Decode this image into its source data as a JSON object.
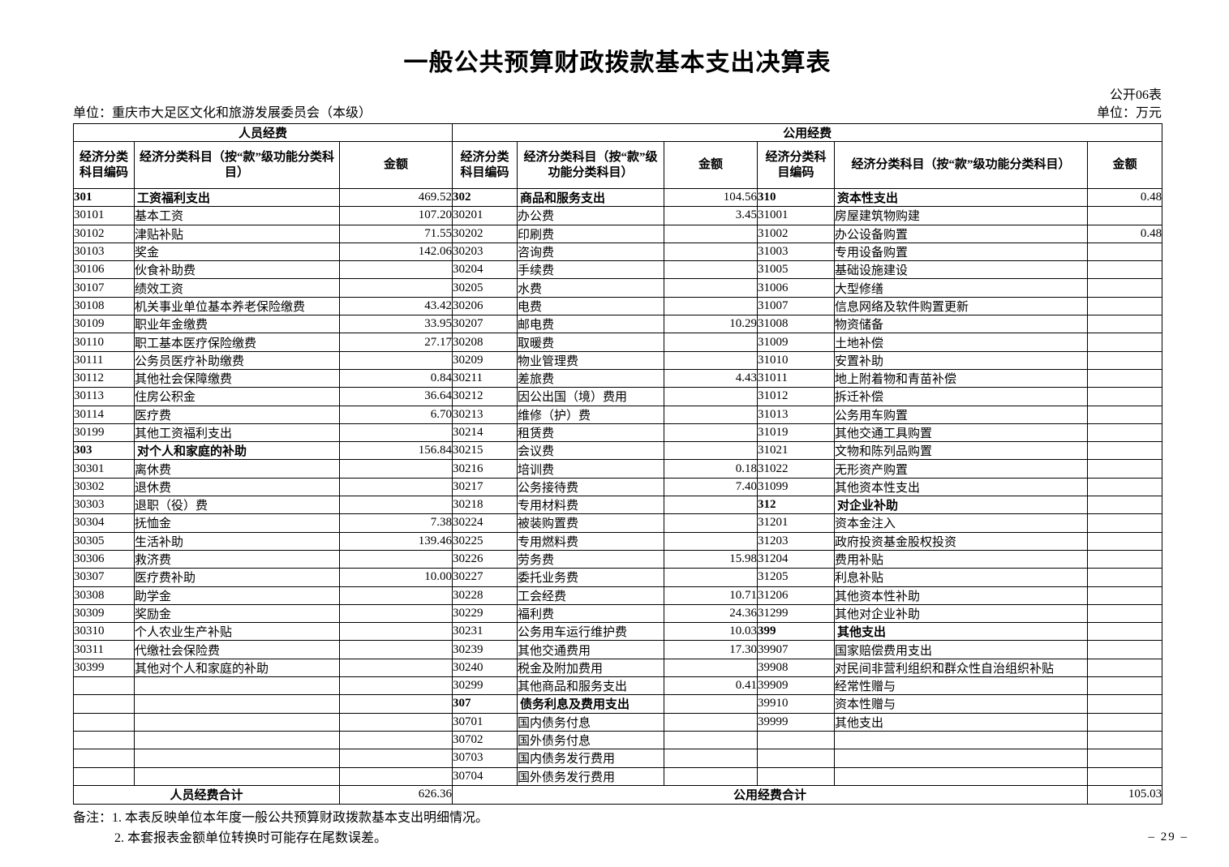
{
  "page": {
    "title": "一般公共预算财政拨款基本支出决算表",
    "form_code": "公开06表",
    "unit_line": "单位：重庆市大足区文化和旅游发展委员会（本级）",
    "unit_of_measure": "单位：万元",
    "page_number": "–  29  –"
  },
  "table": {
    "group_headers": [
      "人员经费",
      "公用经费"
    ],
    "column_headers": {
      "code": "经济分类科目编码",
      "subject": "经济分类科目（按“款”级功能分类科目）",
      "amount": "金额"
    },
    "sections": {
      "personnel": {
        "rows": [
          {
            "code": "301",
            "name": "工资福利支出",
            "amount": "469.52",
            "bold": true
          },
          {
            "code": "30101",
            "name": "基本工资",
            "amount": "107.20",
            "bold": false
          },
          {
            "code": "30102",
            "name": "津贴补贴",
            "amount": "71.55",
            "bold": false
          },
          {
            "code": "30103",
            "name": "奖金",
            "amount": "142.06",
            "bold": false
          },
          {
            "code": "30106",
            "name": "伙食补助费",
            "amount": "",
            "bold": false
          },
          {
            "code": "30107",
            "name": "绩效工资",
            "amount": "",
            "bold": false
          },
          {
            "code": "30108",
            "name": "机关事业单位基本养老保险缴费",
            "amount": "43.42",
            "bold": false
          },
          {
            "code": "30109",
            "name": "职业年金缴费",
            "amount": "33.95",
            "bold": false
          },
          {
            "code": "30110",
            "name": "职工基本医疗保险缴费",
            "amount": "27.17",
            "bold": false
          },
          {
            "code": "30111",
            "name": "公务员医疗补助缴费",
            "amount": "",
            "bold": false
          },
          {
            "code": "30112",
            "name": "其他社会保障缴费",
            "amount": "0.84",
            "bold": false
          },
          {
            "code": "30113",
            "name": "住房公积金",
            "amount": "36.64",
            "bold": false
          },
          {
            "code": "30114",
            "name": "医疗费",
            "amount": "6.70",
            "bold": false
          },
          {
            "code": "30199",
            "name": "其他工资福利支出",
            "amount": "",
            "bold": false
          },
          {
            "code": "303",
            "name": "对个人和家庭的补助",
            "amount": "156.84",
            "bold": true
          },
          {
            "code": "30301",
            "name": "离休费",
            "amount": "",
            "bold": false
          },
          {
            "code": "30302",
            "name": "退休费",
            "amount": "",
            "bold": false
          },
          {
            "code": "30303",
            "name": "退职（役）费",
            "amount": "",
            "bold": false
          },
          {
            "code": "30304",
            "name": "抚恤金",
            "amount": "7.38",
            "bold": false
          },
          {
            "code": "30305",
            "name": "生活补助",
            "amount": "139.46",
            "bold": false
          },
          {
            "code": "30306",
            "name": "救济费",
            "amount": "",
            "bold": false
          },
          {
            "code": "30307",
            "name": "医疗费补助",
            "amount": "10.00",
            "bold": false
          },
          {
            "code": "30308",
            "name": "助学金",
            "amount": "",
            "bold": false
          },
          {
            "code": "30309",
            "name": "奖励金",
            "amount": "",
            "bold": false
          },
          {
            "code": "30310",
            "name": "个人农业生产补贴",
            "amount": "",
            "bold": false
          },
          {
            "code": "30311",
            "name": "代缴社会保险费",
            "amount": "",
            "bold": false
          },
          {
            "code": "30399",
            "name": "其他对个人和家庭的补助",
            "amount": "",
            "bold": false
          }
        ]
      },
      "public_mid": {
        "rows": [
          {
            "code": "302",
            "name": "商品和服务支出",
            "amount": "104.56",
            "bold": true
          },
          {
            "code": "30201",
            "name": "办公费",
            "amount": "3.45",
            "bold": false
          },
          {
            "code": "30202",
            "name": "印刷费",
            "amount": "",
            "bold": false
          },
          {
            "code": "30203",
            "name": "咨询费",
            "amount": "",
            "bold": false
          },
          {
            "code": "30204",
            "name": "手续费",
            "amount": "",
            "bold": false
          },
          {
            "code": "30205",
            "name": "水费",
            "amount": "",
            "bold": false
          },
          {
            "code": "30206",
            "name": "电费",
            "amount": "",
            "bold": false
          },
          {
            "code": "30207",
            "name": "邮电费",
            "amount": "10.29",
            "bold": false
          },
          {
            "code": "30208",
            "name": "取暖费",
            "amount": "",
            "bold": false
          },
          {
            "code": "30209",
            "name": "物业管理费",
            "amount": "",
            "bold": false
          },
          {
            "code": "30211",
            "name": "差旅费",
            "amount": "4.43",
            "bold": false
          },
          {
            "code": "30212",
            "name": "因公出国（境）费用",
            "amount": "",
            "bold": false
          },
          {
            "code": "30213",
            "name": "维修（护）费",
            "amount": "",
            "bold": false
          },
          {
            "code": "30214",
            "name": "租赁费",
            "amount": "",
            "bold": false
          },
          {
            "code": "30215",
            "name": "会议费",
            "amount": "",
            "bold": false
          },
          {
            "code": "30216",
            "name": "培训费",
            "amount": "0.18",
            "bold": false
          },
          {
            "code": "30217",
            "name": "公务接待费",
            "amount": "7.40",
            "bold": false
          },
          {
            "code": "30218",
            "name": "专用材料费",
            "amount": "",
            "bold": false
          },
          {
            "code": "30224",
            "name": "被装购置费",
            "amount": "",
            "bold": false
          },
          {
            "code": "30225",
            "name": "专用燃料费",
            "amount": "",
            "bold": false
          },
          {
            "code": "30226",
            "name": "劳务费",
            "amount": "15.98",
            "bold": false
          },
          {
            "code": "30227",
            "name": "委托业务费",
            "amount": "",
            "bold": false
          },
          {
            "code": "30228",
            "name": "工会经费",
            "amount": "10.71",
            "bold": false
          },
          {
            "code": "30229",
            "name": "福利费",
            "amount": "24.36",
            "bold": false
          },
          {
            "code": "30231",
            "name": "公务用车运行维护费",
            "amount": "10.03",
            "bold": false
          },
          {
            "code": "30239",
            "name": "其他交通费用",
            "amount": "17.30",
            "bold": false
          },
          {
            "code": "30240",
            "name": "税金及附加费用",
            "amount": "",
            "bold": false
          },
          {
            "code": "30299",
            "name": "其他商品和服务支出",
            "amount": "0.41",
            "bold": false
          },
          {
            "code": "307",
            "name": "债务利息及费用支出",
            "amount": "",
            "bold": true
          },
          {
            "code": "30701",
            "name": "国内债务付息",
            "amount": "",
            "bold": false
          },
          {
            "code": "30702",
            "name": "国外债务付息",
            "amount": "",
            "bold": false
          },
          {
            "code": "30703",
            "name": "国内债务发行费用",
            "amount": "",
            "bold": false
          },
          {
            "code": "30704",
            "name": "国外债务发行费用",
            "amount": "",
            "bold": false
          }
        ]
      },
      "public_right": {
        "rows": [
          {
            "code": "310",
            "name": "资本性支出",
            "amount": "0.48",
            "bold": true
          },
          {
            "code": "31001",
            "name": "房屋建筑物购建",
            "amount": "",
            "bold": false
          },
          {
            "code": "31002",
            "name": "办公设备购置",
            "amount": "0.48",
            "bold": false
          },
          {
            "code": "31003",
            "name": "专用设备购置",
            "amount": "",
            "bold": false
          },
          {
            "code": "31005",
            "name": "基础设施建设",
            "amount": "",
            "bold": false
          },
          {
            "code": "31006",
            "name": "大型修缮",
            "amount": "",
            "bold": false
          },
          {
            "code": "31007",
            "name": "信息网络及软件购置更新",
            "amount": "",
            "bold": false
          },
          {
            "code": "31008",
            "name": "物资储备",
            "amount": "",
            "bold": false
          },
          {
            "code": "31009",
            "name": "土地补偿",
            "amount": "",
            "bold": false
          },
          {
            "code": "31010",
            "name": "安置补助",
            "amount": "",
            "bold": false
          },
          {
            "code": "31011",
            "name": "地上附着物和青苗补偿",
            "amount": "",
            "bold": false
          },
          {
            "code": "31012",
            "name": "拆迁补偿",
            "amount": "",
            "bold": false
          },
          {
            "code": "31013",
            "name": "公务用车购置",
            "amount": "",
            "bold": false
          },
          {
            "code": "31019",
            "name": "其他交通工具购置",
            "amount": "",
            "bold": false
          },
          {
            "code": "31021",
            "name": "文物和陈列品购置",
            "amount": "",
            "bold": false
          },
          {
            "code": "31022",
            "name": "无形资产购置",
            "amount": "",
            "bold": false
          },
          {
            "code": "31099",
            "name": "其他资本性支出",
            "amount": "",
            "bold": false
          },
          {
            "code": "312",
            "name": "对企业补助",
            "amount": "",
            "bold": true
          },
          {
            "code": "31201",
            "name": "资本金注入",
            "amount": "",
            "bold": false
          },
          {
            "code": "31203",
            "name": "政府投资基金股权投资",
            "amount": "",
            "bold": false
          },
          {
            "code": "31204",
            "name": "费用补贴",
            "amount": "",
            "bold": false
          },
          {
            "code": "31205",
            "name": "利息补贴",
            "amount": "",
            "bold": false
          },
          {
            "code": "31206",
            "name": "其他资本性补助",
            "amount": "",
            "bold": false
          },
          {
            "code": "31299",
            "name": "其他对企业补助",
            "amount": "",
            "bold": false
          },
          {
            "code": "399",
            "name": "其他支出",
            "amount": "",
            "bold": true
          },
          {
            "code": "39907",
            "name": "国家赔偿费用支出",
            "amount": "",
            "bold": false
          },
          {
            "code": "39908",
            "name": "对民间非营利组织和群众性自治组织补贴",
            "amount": "",
            "bold": false
          },
          {
            "code": "39909",
            "name": "经常性赠与",
            "amount": "",
            "bold": false
          },
          {
            "code": "39910",
            "name": "资本性赠与",
            "amount": "",
            "bold": false
          },
          {
            "code": "39999",
            "name": "其他支出",
            "amount": "",
            "bold": false
          }
        ]
      }
    },
    "row_count": 33,
    "totals": {
      "personnel_label": "人员经费合计",
      "personnel_amount": "626.36",
      "public_label": "公用经费合计",
      "public_amount": "105.03"
    }
  },
  "notes": {
    "label": "备注：",
    "items": [
      "1. 本表反映单位本年度一般公共预算财政拨款基本支出明细情况。",
      "2. 本套报表金额单位转换时可能存在尾数误差。"
    ]
  }
}
